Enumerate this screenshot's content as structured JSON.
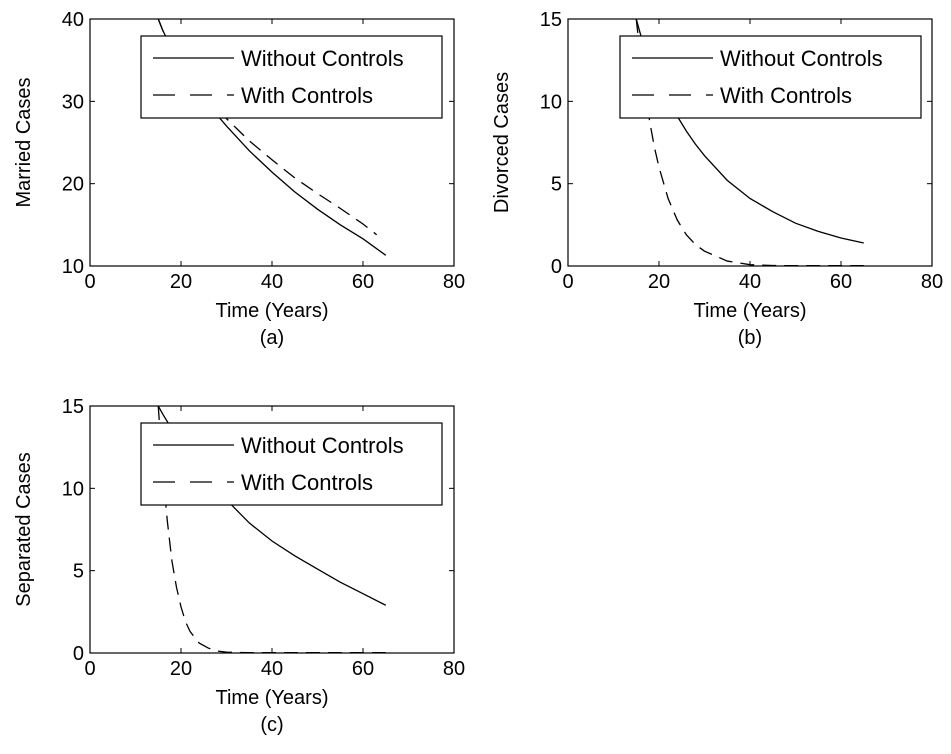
{
  "chart_data": [
    {
      "type": "line",
      "caption": "(a)",
      "xlabel": "Time (Years)",
      "ylabel": "Married Cases",
      "xlim": [
        0,
        80
      ],
      "ylim": [
        10,
        40
      ],
      "xticks": [
        "0",
        "20",
        "40",
        "60",
        "80"
      ],
      "yticks": [
        "10",
        "20",
        "30",
        "40"
      ],
      "grid": false,
      "legend_position": "top-right",
      "series": [
        {
          "name": "Without Controls",
          "style": "solid",
          "color": "#000000",
          "x": [
            15,
            16,
            18,
            20,
            22,
            25,
            28,
            30,
            35,
            40,
            45,
            50,
            55,
            60,
            65
          ],
          "y": [
            40,
            38.6,
            36.4,
            34.5,
            32.8,
            30.4,
            28.3,
            27.0,
            24.0,
            21.4,
            19.0,
            16.9,
            15.0,
            13.3,
            11.3
          ]
        },
        {
          "name": "With Controls",
          "style": "dashed",
          "color": "#000000",
          "x": [
            15,
            16,
            18,
            20,
            22,
            25,
            28,
            30,
            35,
            40,
            45,
            50,
            55,
            60,
            63
          ],
          "y": [
            40,
            38.6,
            36.6,
            34.8,
            33.2,
            31.0,
            29.1,
            27.9,
            25.2,
            22.9,
            20.7,
            18.8,
            17.0,
            15.1,
            13.8
          ]
        }
      ]
    },
    {
      "type": "line",
      "caption": "(b)",
      "xlabel": "Time (Years)",
      "ylabel": "Divorced Cases",
      "xlim": [
        0,
        80
      ],
      "ylim": [
        0,
        15
      ],
      "xticks": [
        "0",
        "20",
        "40",
        "60",
        "80"
      ],
      "yticks": [
        "0",
        "5",
        "10",
        "15"
      ],
      "grid": false,
      "legend_position": "top-right",
      "series": [
        {
          "name": "Without Controls",
          "style": "solid",
          "color": "#000000",
          "x": [
            15,
            16,
            18,
            20,
            22,
            24,
            26,
            28,
            30,
            35,
            40,
            45,
            50,
            55,
            60,
            65
          ],
          "y": [
            15,
            14.0,
            12.6,
            11.3,
            10.1,
            9.1,
            8.2,
            7.4,
            6.7,
            5.2,
            4.1,
            3.3,
            2.6,
            2.1,
            1.7,
            1.4
          ]
        },
        {
          "name": "With Controls",
          "style": "dashed",
          "color": "#000000",
          "x": [
            15,
            16,
            17,
            18,
            19,
            20,
            22,
            24,
            26,
            28,
            30,
            35,
            40,
            45,
            50,
            55,
            60,
            65
          ],
          "y": [
            15,
            12.5,
            10.5,
            8.7,
            7.2,
            6.0,
            4.1,
            2.8,
            1.9,
            1.3,
            0.9,
            0.3,
            0.08,
            0.03,
            0.02,
            0.02,
            0.02,
            0.02
          ]
        }
      ]
    },
    {
      "type": "line",
      "caption": "(c)",
      "xlabel": "Time (Years)",
      "ylabel": "Separated Cases",
      "xlim": [
        0,
        80
      ],
      "ylim": [
        0,
        15
      ],
      "xticks": [
        "0",
        "20",
        "40",
        "60",
        "80"
      ],
      "yticks": [
        "0",
        "5",
        "10",
        "15"
      ],
      "grid": false,
      "legend_position": "top-right",
      "series": [
        {
          "name": "Without Controls",
          "style": "solid",
          "color": "#000000",
          "x": [
            15,
            16,
            18,
            20,
            22,
            25,
            28,
            30,
            35,
            40,
            45,
            50,
            55,
            60,
            65
          ],
          "y": [
            15,
            14.5,
            13.6,
            12.8,
            12.0,
            10.9,
            9.9,
            9.3,
            7.9,
            6.8,
            5.9,
            5.1,
            4.3,
            3.6,
            2.9
          ]
        },
        {
          "name": "With Controls",
          "style": "dashed",
          "color": "#000000",
          "x": [
            15,
            16,
            17,
            18,
            19,
            20,
            21,
            22,
            24,
            26,
            28,
            30,
            35,
            40,
            50,
            60,
            65
          ],
          "y": [
            15,
            11.0,
            8.0,
            5.6,
            4.0,
            2.8,
            1.9,
            1.3,
            0.6,
            0.3,
            0.12,
            0.05,
            0.02,
            0.02,
            0.02,
            0.02,
            0.02
          ]
        }
      ]
    }
  ]
}
